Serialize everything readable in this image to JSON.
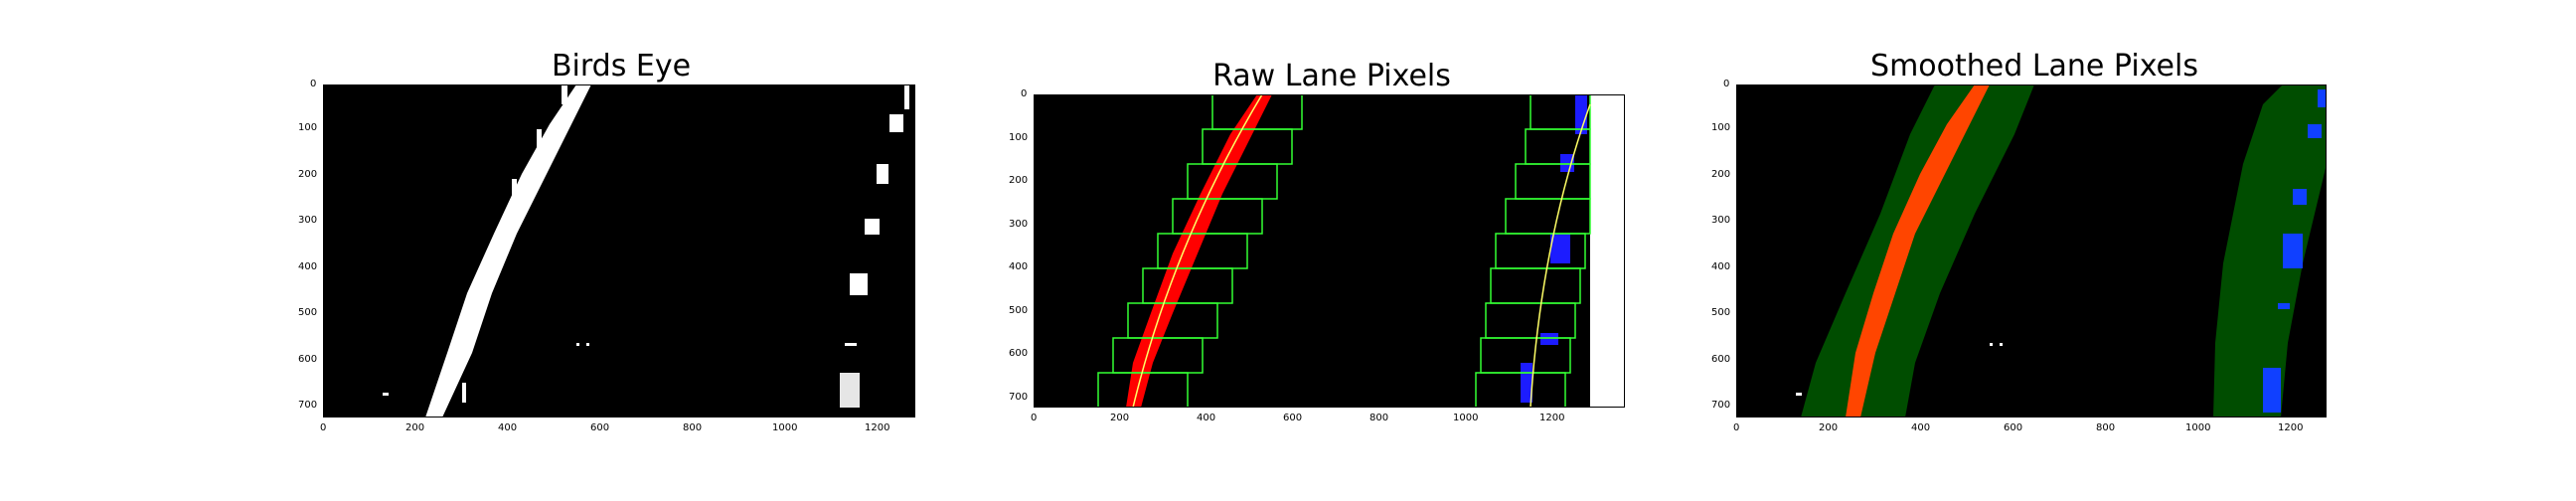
{
  "panels": [
    {
      "title": "Birds Eye",
      "x_ticks": [
        "0",
        "200",
        "400",
        "600",
        "800",
        "1000",
        "1200"
      ],
      "y_ticks": [
        "0",
        "100",
        "200",
        "300",
        "400",
        "500",
        "600",
        "700"
      ]
    },
    {
      "title": "Raw Lane Pixels",
      "x_ticks": [
        "0",
        "200",
        "400",
        "600",
        "800",
        "1000",
        "1200"
      ],
      "y_ticks": [
        "0",
        "100",
        "200",
        "300",
        "400",
        "500",
        "600",
        "700"
      ]
    },
    {
      "title": "Smoothed Lane Pixels",
      "x_ticks": [
        "0",
        "200",
        "400",
        "600",
        "800",
        "1000",
        "1200"
      ],
      "y_ticks": [
        "0",
        "100",
        "200",
        "300",
        "400",
        "500",
        "600",
        "700"
      ]
    }
  ],
  "colors": {
    "background": "#000000",
    "lane_white": "#ffffff",
    "left_lane_raw": "#ff0000",
    "right_lane_raw": "#0000ff",
    "search_window": "#00ff00",
    "fit_line": "#ffff66",
    "smoothed_left": "#ff4500",
    "smoothed_right": "#1040ff",
    "lane_band": "#004d00"
  }
}
